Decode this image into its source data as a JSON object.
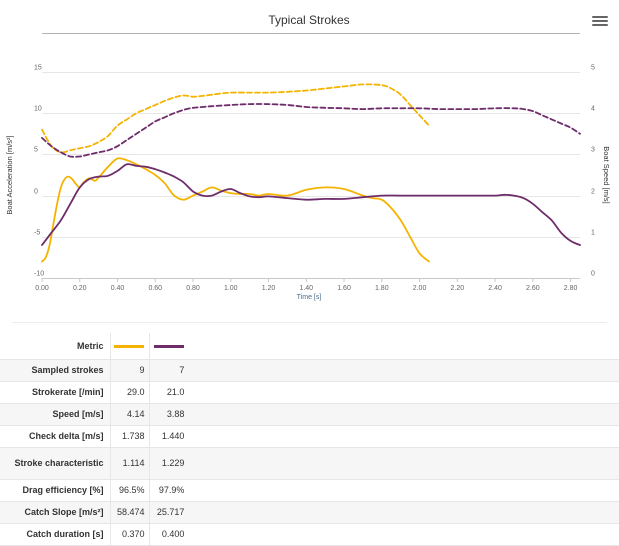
{
  "chart_data": {
    "type": "line",
    "title": "Typical Strokes",
    "xlabel": "Time [s]",
    "ylabel_left": "Boat Acceleration [m/s²]",
    "ylabel_right": "Boat Speed [m/s]",
    "xlim": [
      0,
      2.85
    ],
    "ylim_left": [
      -10,
      15
    ],
    "ylim_right": [
      0,
      5
    ],
    "x_ticks": [
      "0.00",
      "0.20",
      "0.40",
      "0.60",
      "0.80",
      "1.00",
      "1.20",
      "1.40",
      "1.60",
      "1.80",
      "2.00",
      "2.20",
      "2.40",
      "2.60",
      "2.80"
    ],
    "y_ticks_left": [
      "15",
      "10",
      "5",
      "0",
      "-5",
      "-10"
    ],
    "y_ticks_right": [
      "5",
      "4",
      "3",
      "2",
      "1",
      "0"
    ],
    "series": [
      {
        "axis": "left",
        "style": "solid",
        "color": "#f5b301",
        "x": [
          0,
          0.02,
          0.04,
          0.06,
          0.08,
          0.1,
          0.12,
          0.14,
          0.16,
          0.18,
          0.2,
          0.22,
          0.25,
          0.28,
          0.3,
          0.35,
          0.4,
          0.45,
          0.5,
          0.55,
          0.6,
          0.65,
          0.7,
          0.75,
          0.8,
          0.85,
          0.9,
          0.95,
          1.0,
          1.05,
          1.1,
          1.15,
          1.2,
          1.3,
          1.4,
          1.5,
          1.6,
          1.7,
          1.75,
          1.8,
          1.85,
          1.9,
          1.95,
          2.0,
          2.05
        ],
        "y": [
          -8,
          -7.5,
          -6,
          -3.5,
          -1,
          1,
          2,
          2.3,
          2,
          1.4,
          1,
          1.6,
          2.1,
          1.8,
          2.2,
          3.5,
          4.5,
          4.3,
          3.8,
          3.2,
          2.5,
          1.5,
          0,
          -0.5,
          0,
          0.5,
          1,
          0.6,
          0.3,
          0.2,
          0.2,
          0,
          0.2,
          0,
          0.7,
          1,
          0.8,
          0,
          -0.3,
          -0.5,
          -1.5,
          -3,
          -5,
          -7,
          -8
        ]
      },
      {
        "axis": "left",
        "style": "solid",
        "color": "#6e2c6b",
        "x": [
          0,
          0.05,
          0.1,
          0.15,
          0.2,
          0.25,
          0.3,
          0.35,
          0.4,
          0.45,
          0.5,
          0.55,
          0.6,
          0.65,
          0.7,
          0.75,
          0.8,
          0.85,
          0.9,
          0.95,
          1.0,
          1.05,
          1.1,
          1.15,
          1.2,
          1.3,
          1.4,
          1.5,
          1.6,
          1.7,
          1.8,
          1.9,
          2.0,
          2.1,
          2.2,
          2.3,
          2.4,
          2.45,
          2.5,
          2.55,
          2.6,
          2.65,
          2.7,
          2.75,
          2.8,
          2.85
        ],
        "y": [
          -6,
          -4.5,
          -3,
          -1,
          1,
          2,
          2.3,
          2.4,
          3,
          3.8,
          3.6,
          3.5,
          3.2,
          2.8,
          2.3,
          1.6,
          0.5,
          0,
          0,
          0.5,
          0.8,
          0.3,
          -0.1,
          -0.2,
          -0.1,
          -0.3,
          -0.5,
          -0.4,
          -0.4,
          -0.2,
          0,
          0,
          0,
          0,
          0,
          0,
          0,
          0.1,
          0,
          -0.3,
          -1,
          -2,
          -3,
          -4.5,
          -5.5,
          -6
        ]
      },
      {
        "axis": "right",
        "style": "dashed",
        "color": "#f5b301",
        "x": [
          0,
          0.05,
          0.1,
          0.15,
          0.2,
          0.25,
          0.3,
          0.35,
          0.4,
          0.45,
          0.5,
          0.55,
          0.6,
          0.65,
          0.7,
          0.75,
          0.8,
          0.85,
          0.9,
          0.95,
          1.0,
          1.1,
          1.2,
          1.3,
          1.4,
          1.5,
          1.6,
          1.7,
          1.8,
          1.85,
          1.9,
          1.95,
          2.0,
          2.05
        ],
        "y": [
          3.6,
          3.2,
          3.05,
          3.1,
          3.15,
          3.2,
          3.3,
          3.45,
          3.7,
          3.85,
          4.0,
          4.1,
          4.2,
          4.3,
          4.38,
          4.43,
          4.4,
          4.42,
          4.45,
          4.48,
          4.5,
          4.5,
          4.5,
          4.52,
          4.55,
          4.6,
          4.65,
          4.7,
          4.68,
          4.6,
          4.45,
          4.2,
          3.95,
          3.7
        ]
      },
      {
        "axis": "right",
        "style": "dashed",
        "color": "#6e2c6b",
        "x": [
          0,
          0.05,
          0.1,
          0.15,
          0.2,
          0.25,
          0.3,
          0.35,
          0.4,
          0.45,
          0.5,
          0.55,
          0.6,
          0.65,
          0.7,
          0.75,
          0.8,
          0.85,
          0.9,
          1.0,
          1.1,
          1.2,
          1.3,
          1.4,
          1.5,
          1.6,
          1.7,
          1.8,
          1.9,
          2.0,
          2.1,
          2.2,
          2.3,
          2.4,
          2.5,
          2.55,
          2.6,
          2.65,
          2.7,
          2.75,
          2.8,
          2.85
        ],
        "y": [
          3.4,
          3.2,
          3.05,
          2.95,
          2.95,
          3.0,
          3.05,
          3.1,
          3.2,
          3.35,
          3.5,
          3.65,
          3.8,
          3.9,
          4.0,
          4.08,
          4.13,
          4.15,
          4.17,
          4.2,
          4.22,
          4.22,
          4.2,
          4.15,
          4.13,
          4.12,
          4.1,
          4.12,
          4.12,
          4.12,
          4.1,
          4.1,
          4.1,
          4.12,
          4.12,
          4.1,
          4.05,
          3.95,
          3.85,
          3.75,
          3.65,
          3.5
        ]
      }
    ],
    "grid": true
  },
  "table": {
    "header_label": "Metric",
    "series_colors": [
      "#f5b301",
      "#6e2c6b"
    ],
    "rows": [
      {
        "label": "Sampled strokes",
        "v1": "9",
        "v2": "7"
      },
      {
        "label": "Strokerate [/min]",
        "v1": "29.0",
        "v2": "21.0"
      },
      {
        "label": "Speed [m/s]",
        "v1": "4.14",
        "v2": "3.88"
      },
      {
        "label": "Check delta [m/s]",
        "v1": "1.738",
        "v2": "1.440"
      },
      {
        "label": "Stroke characteristic",
        "v1": "1.114",
        "v2": "1.229"
      },
      {
        "label": "Drag efficiency [%]",
        "v1": "96.5%",
        "v2": "97.9%"
      },
      {
        "label": "Catch Slope [m/s²]",
        "v1": "58.474",
        "v2": "25.717"
      },
      {
        "label": "Catch duration [s]",
        "v1": "0.370",
        "v2": "0.400"
      }
    ]
  }
}
